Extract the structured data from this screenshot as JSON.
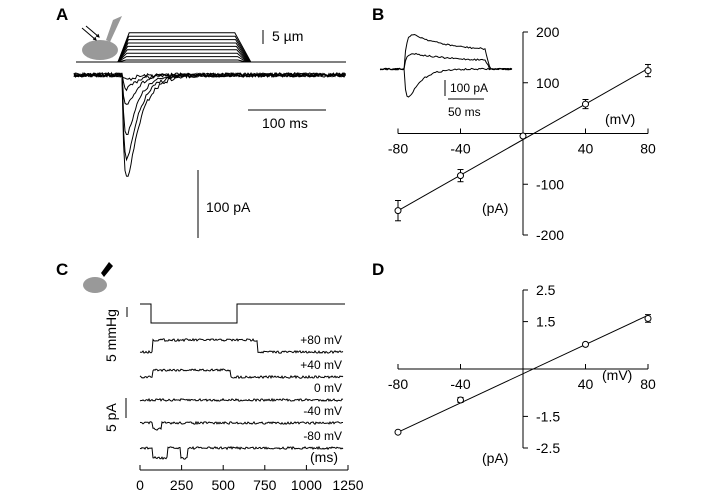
{
  "panels": {
    "A": {
      "letter": "A",
      "scale_um": "5 µm",
      "scale_ms": "100 ms",
      "scale_pA": "100 pA"
    },
    "B": {
      "letter": "B",
      "inset_scale_pA": "100 pA",
      "inset_scale_ms": "50 ms"
    },
    "C": {
      "letter": "C",
      "scale_mmHg": "5 mmHg",
      "scale_pA": "5 pA",
      "trace_labels": [
        "+80 mV",
        "+40 mV",
        "0 mV",
        "-40 mV",
        "-80 mV"
      ]
    },
    "D": {
      "letter": "D"
    }
  },
  "chart_data": [
    {
      "id": "B",
      "type": "scatter",
      "xlabel": "(mV)",
      "ylabel": "(pA)",
      "xlim": [
        -80,
        80
      ],
      "ylim": [
        -200,
        200
      ],
      "xticks": [
        -80,
        -40,
        40,
        80
      ],
      "yticks": [
        200,
        100,
        -100,
        -200
      ],
      "xtick_labels": [
        "-80",
        "-40",
        "40",
        "80"
      ],
      "ytick_labels": [
        "200",
        "100",
        "-100",
        "-200"
      ],
      "points": [
        {
          "x": -80,
          "y": -152,
          "err": 20
        },
        {
          "x": -40,
          "y": -83,
          "err": 12
        },
        {
          "x": 0,
          "y": -5,
          "err": 3
        },
        {
          "x": 40,
          "y": 58,
          "err": 9
        },
        {
          "x": 80,
          "y": 124,
          "err": 12
        }
      ],
      "fit_line": {
        "x": [
          -80,
          80
        ],
        "y": [
          -152,
          128
        ]
      }
    },
    {
      "id": "D",
      "type": "scatter",
      "xlabel": "(mV)",
      "ylabel": "(pA)",
      "xlim": [
        -80,
        80
      ],
      "ylim": [
        -2.5,
        2.5
      ],
      "xticks": [
        -80,
        -40,
        40,
        80
      ],
      "yticks": [
        2.5,
        1.5,
        -1.5,
        -2.5
      ],
      "xtick_labels": [
        "-80",
        "-40",
        "40",
        "80"
      ],
      "ytick_labels": [
        "2.5",
        "1.5",
        "-1.5",
        "-2.5"
      ],
      "points": [
        {
          "x": -80,
          "y": -2.0,
          "err": 0
        },
        {
          "x": -40,
          "y": -0.98,
          "err": 0.08
        },
        {
          "x": 40,
          "y": 0.78,
          "err": 0.05
        },
        {
          "x": 80,
          "y": 1.6,
          "err": 0.12
        }
      ],
      "fit_line": {
        "x": [
          -80,
          80
        ],
        "y": [
          -2.0,
          1.7
        ]
      }
    },
    {
      "id": "C-axis",
      "type": "line",
      "xlabel": "(ms)",
      "xlim": [
        0,
        1250
      ],
      "xticks": [
        0,
        250,
        500,
        750,
        1000,
        1250
      ],
      "xtick_labels": [
        "0",
        "250",
        "500",
        "750",
        "1000",
        "1250"
      ]
    }
  ]
}
